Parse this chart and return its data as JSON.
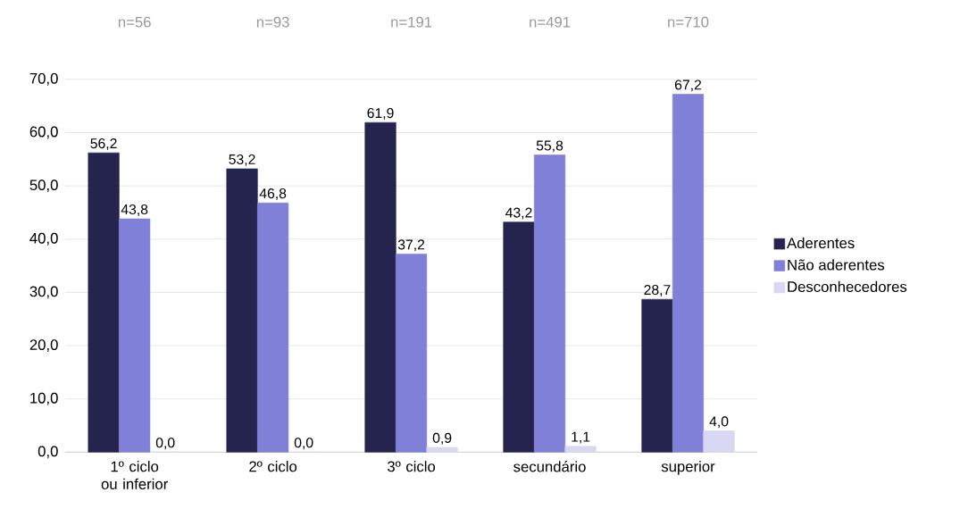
{
  "chart_data": {
    "type": "bar",
    "categories": [
      "1º ciclo ou inferior",
      "2º ciclo",
      "3º ciclo",
      "secundário",
      "superior"
    ],
    "series": [
      {
        "name": "Aderentes",
        "color": "#24244f",
        "values": [
          56.2,
          53.2,
          61.9,
          43.2,
          28.7
        ],
        "value_labels": [
          "56,2",
          "53,2",
          "61,9",
          "43,2",
          "28,7"
        ]
      },
      {
        "name": "Não aderentes",
        "color": "#8080d8",
        "values": [
          43.8,
          46.8,
          37.2,
          55.8,
          67.2
        ],
        "value_labels": [
          "43,8",
          "46,8",
          "37,2",
          "55,8",
          "67,2"
        ]
      },
      {
        "name": "Desconhecedores",
        "color": "#d8d8f4",
        "values": [
          0.0,
          0.0,
          0.9,
          1.1,
          4.0
        ],
        "value_labels": [
          "0,0",
          "0,0",
          "0,9",
          "1,1",
          "4,0"
        ]
      }
    ],
    "annotations": [
      "n=56",
      "n=93",
      "n=191",
      "n=491",
      "n=710"
    ],
    "ylim": [
      0,
      70
    ],
    "yticks": [
      {
        "value": 0,
        "label": "0,0"
      },
      {
        "value": 10,
        "label": "10,0"
      },
      {
        "value": 20,
        "label": "20,0"
      },
      {
        "value": 30,
        "label": "30,0"
      },
      {
        "value": 40,
        "label": "40,0"
      },
      {
        "value": 50,
        "label": "50,0"
      },
      {
        "value": 60,
        "label": "60,0"
      },
      {
        "value": 70,
        "label": "70,0"
      }
    ],
    "grid": "y",
    "legend": "right"
  }
}
